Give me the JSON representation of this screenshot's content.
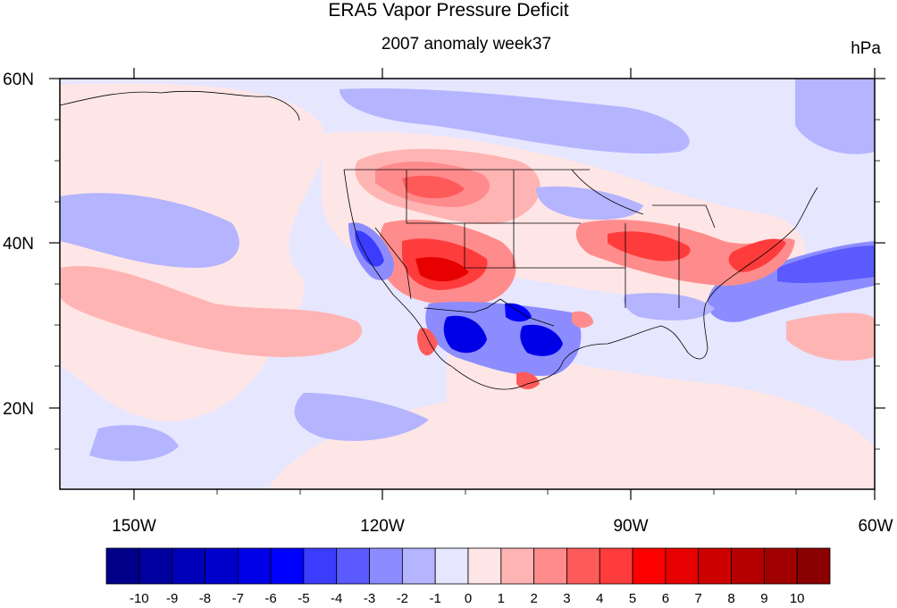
{
  "title": "ERA5 Vapor Pressure Deficit",
  "subtitle": "2007 anomaly week37",
  "units": "hPa",
  "map": {
    "lon_range": [
      -160,
      -60
    ],
    "lat_range": [
      10,
      60
    ],
    "lon_labels": [
      "150W",
      "120W",
      "90W",
      "60W"
    ],
    "lat_labels": [
      "60N",
      "40N",
      "20N"
    ],
    "region": "North America / Eastern Pacific"
  },
  "colorbar": {
    "levels": [
      "-10",
      "-9",
      "-8",
      "-7",
      "-6",
      "-5",
      "-4",
      "-3",
      "-2",
      "-1",
      "0",
      "1",
      "2",
      "3",
      "4",
      "5",
      "6",
      "7",
      "8",
      "9",
      "10"
    ],
    "colors": [
      "#00008b",
      "#0000a0",
      "#0000b8",
      "#0000cd",
      "#0000e6",
      "#0000ff",
      "#3c3cff",
      "#5a5aff",
      "#8c8cff",
      "#b4b4ff",
      "#e6e6ff",
      "#ffe6e6",
      "#ffb4b4",
      "#ff8c8c",
      "#ff5a5a",
      "#ff3c3c",
      "#ff0000",
      "#e60000",
      "#cd0000",
      "#b40000",
      "#a00000",
      "#8b0000"
    ]
  }
}
